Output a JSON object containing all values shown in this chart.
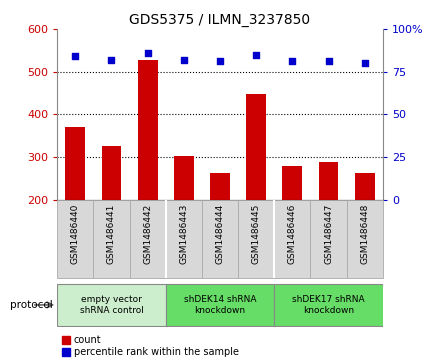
{
  "title": "GDS5375 / ILMN_3237850",
  "categories": [
    "GSM1486440",
    "GSM1486441",
    "GSM1486442",
    "GSM1486443",
    "GSM1486444",
    "GSM1486445",
    "GSM1486446",
    "GSM1486447",
    "GSM1486448"
  ],
  "counts": [
    370,
    325,
    527,
    302,
    263,
    448,
    280,
    288,
    263
  ],
  "percentile_ranks": [
    84,
    82,
    86,
    82,
    81,
    85,
    81,
    81,
    80
  ],
  "ylim_left": [
    200,
    600
  ],
  "ylim_right": [
    0,
    100
  ],
  "yticks_left": [
    200,
    300,
    400,
    500,
    600
  ],
  "yticks_right": [
    0,
    25,
    50,
    75,
    100
  ],
  "ytick_labels_right": [
    "0",
    "25",
    "50",
    "75",
    "100%"
  ],
  "bar_color": "#cc0000",
  "scatter_color": "#0000cc",
  "bar_bottom": 200,
  "groups": [
    {
      "label": "empty vector\nshRNA control",
      "start": 0,
      "end": 3,
      "color": "#cceecc"
    },
    {
      "label": "shDEK14 shRNA\nknockdown",
      "start": 3,
      "end": 6,
      "color": "#66dd66"
    },
    {
      "label": "shDEK17 shRNA\nknockdown",
      "start": 6,
      "end": 9,
      "color": "#66dd66"
    }
  ],
  "protocol_label": "protocol",
  "legend_count_label": "count",
  "legend_percentile_label": "percentile rank within the sample",
  "background_color": "#ffffff",
  "cell_bg_color": "#d8d8d8",
  "cell_border_color": "#aaaaaa"
}
